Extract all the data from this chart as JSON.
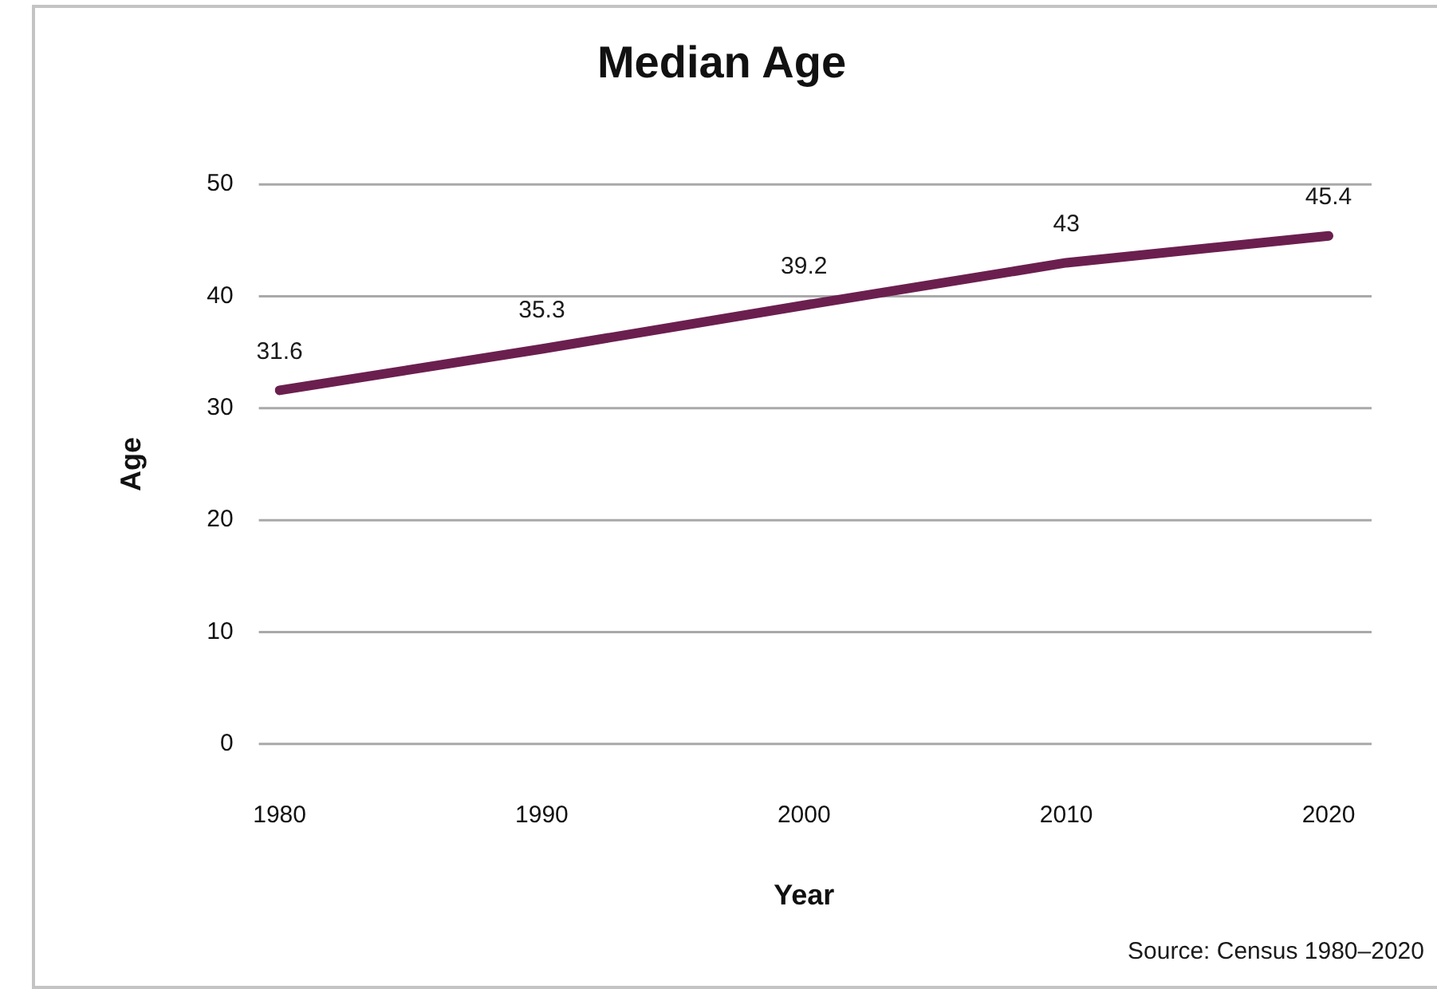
{
  "chart_data": {
    "type": "line",
    "title": "Median Age",
    "xlabel": "Year",
    "ylabel": "Age",
    "categories": [
      "1980",
      "1990",
      "2000",
      "2010",
      "2020"
    ],
    "series": [
      {
        "color": "#6b1f4f",
        "values": [
          31.6,
          35.3,
          39.2,
          43,
          45.4
        ]
      }
    ],
    "ylim": [
      0,
      50
    ],
    "yticks": [
      0,
      10,
      20,
      30,
      40,
      50
    ],
    "grid": "y",
    "data_labels": true,
    "annotations": [
      "Source: Census 1980–2020"
    ]
  }
}
